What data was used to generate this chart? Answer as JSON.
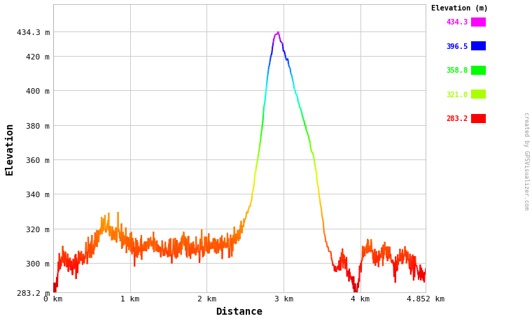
{
  "xlabel": "Distance",
  "ylabel": "Elevation",
  "xlim": [
    0,
    4.852
  ],
  "ylim": [
    283.2,
    450
  ],
  "yticks": [
    283.2,
    300,
    320,
    340,
    360,
    380,
    400,
    420,
    434.3
  ],
  "ytick_labels": [
    "283.2 m",
    "300 m",
    "320 m",
    "340 m",
    "360 m",
    "380 m",
    "400 m",
    "420 m",
    "434.3 m"
  ],
  "xticks": [
    0,
    1,
    2,
    3,
    4,
    4.852
  ],
  "xtick_labels": [
    "0 km",
    "1 km",
    "2 km",
    "3 km",
    "4 km",
    "4.852 km"
  ],
  "elev_min": 283.2,
  "elev_max": 434.3,
  "legend_entries": [
    {
      "label": "434.3",
      "color": "#ff00ff"
    },
    {
      "label": "396.5",
      "color": "#0000ff"
    },
    {
      "label": "358.8",
      "color": "#00ff00"
    },
    {
      "label": "321.0",
      "color": "#aaff00"
    },
    {
      "label": "283.2",
      "color": "#ff0000"
    }
  ],
  "legend_title": "Elevation (m)",
  "bg_color": "#ffffff",
  "plot_bg_color": "#ffffff",
  "grid_color": "#cccccc",
  "watermark": "created by GPSVisualizer.com",
  "font_color": "#000000",
  "color_stops": [
    [
      0.0,
      "#cc0000"
    ],
    [
      0.08,
      "#ff0000"
    ],
    [
      0.15,
      "#ff4400"
    ],
    [
      0.22,
      "#ff7700"
    ],
    [
      0.3,
      "#ffaa00"
    ],
    [
      0.38,
      "#ffdd00"
    ],
    [
      0.45,
      "#ddff00"
    ],
    [
      0.5,
      "#aaff00"
    ],
    [
      0.58,
      "#55ff00"
    ],
    [
      0.65,
      "#00ff00"
    ],
    [
      0.72,
      "#00ffaa"
    ],
    [
      0.78,
      "#00ffff"
    ],
    [
      0.84,
      "#00aaff"
    ],
    [
      0.88,
      "#0055ff"
    ],
    [
      0.92,
      "#0000ff"
    ],
    [
      0.95,
      "#5500ff"
    ],
    [
      0.98,
      "#aa00ff"
    ],
    [
      1.0,
      "#ff00ff"
    ]
  ]
}
